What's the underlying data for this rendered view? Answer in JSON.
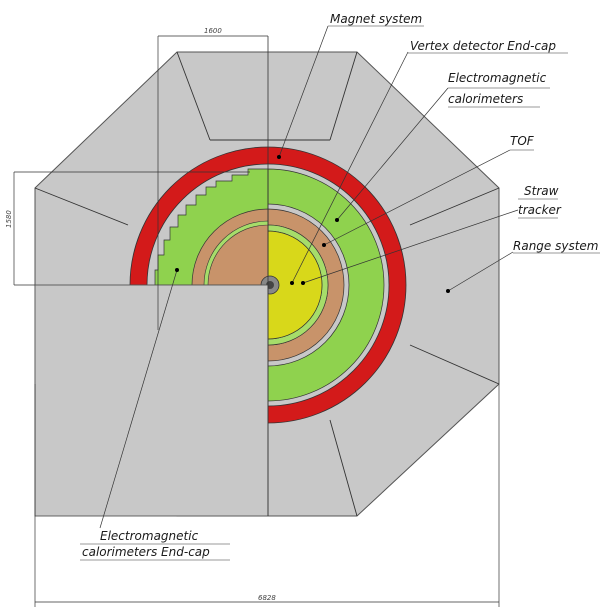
{
  "labels": {
    "magnet": "Magnet system",
    "vertex_endcap": "Vertex detector End-cap",
    "ecal_line1": "Electromagnetic",
    "ecal_line2": "calorimeters",
    "tof": "TOF",
    "straw_line1": "Straw",
    "straw_line2": "tracker",
    "range": "Range system",
    "ecal_endcap_line1": "Electromagnetic",
    "ecal_endcap_line2": "calorimeters End-cap"
  },
  "dimensions": {
    "top": "1600",
    "left": "1580",
    "bottom": "6828"
  },
  "colors": {
    "range_gray": "#c8c8c8",
    "magnet_red": "#d31a1a",
    "ecal_green": "#8fd24e",
    "straw_tan": "#c8936a",
    "tof_green": "#a6dd6a",
    "inner_yellow": "#d8d81a",
    "beam_pipe": "#888888"
  }
}
